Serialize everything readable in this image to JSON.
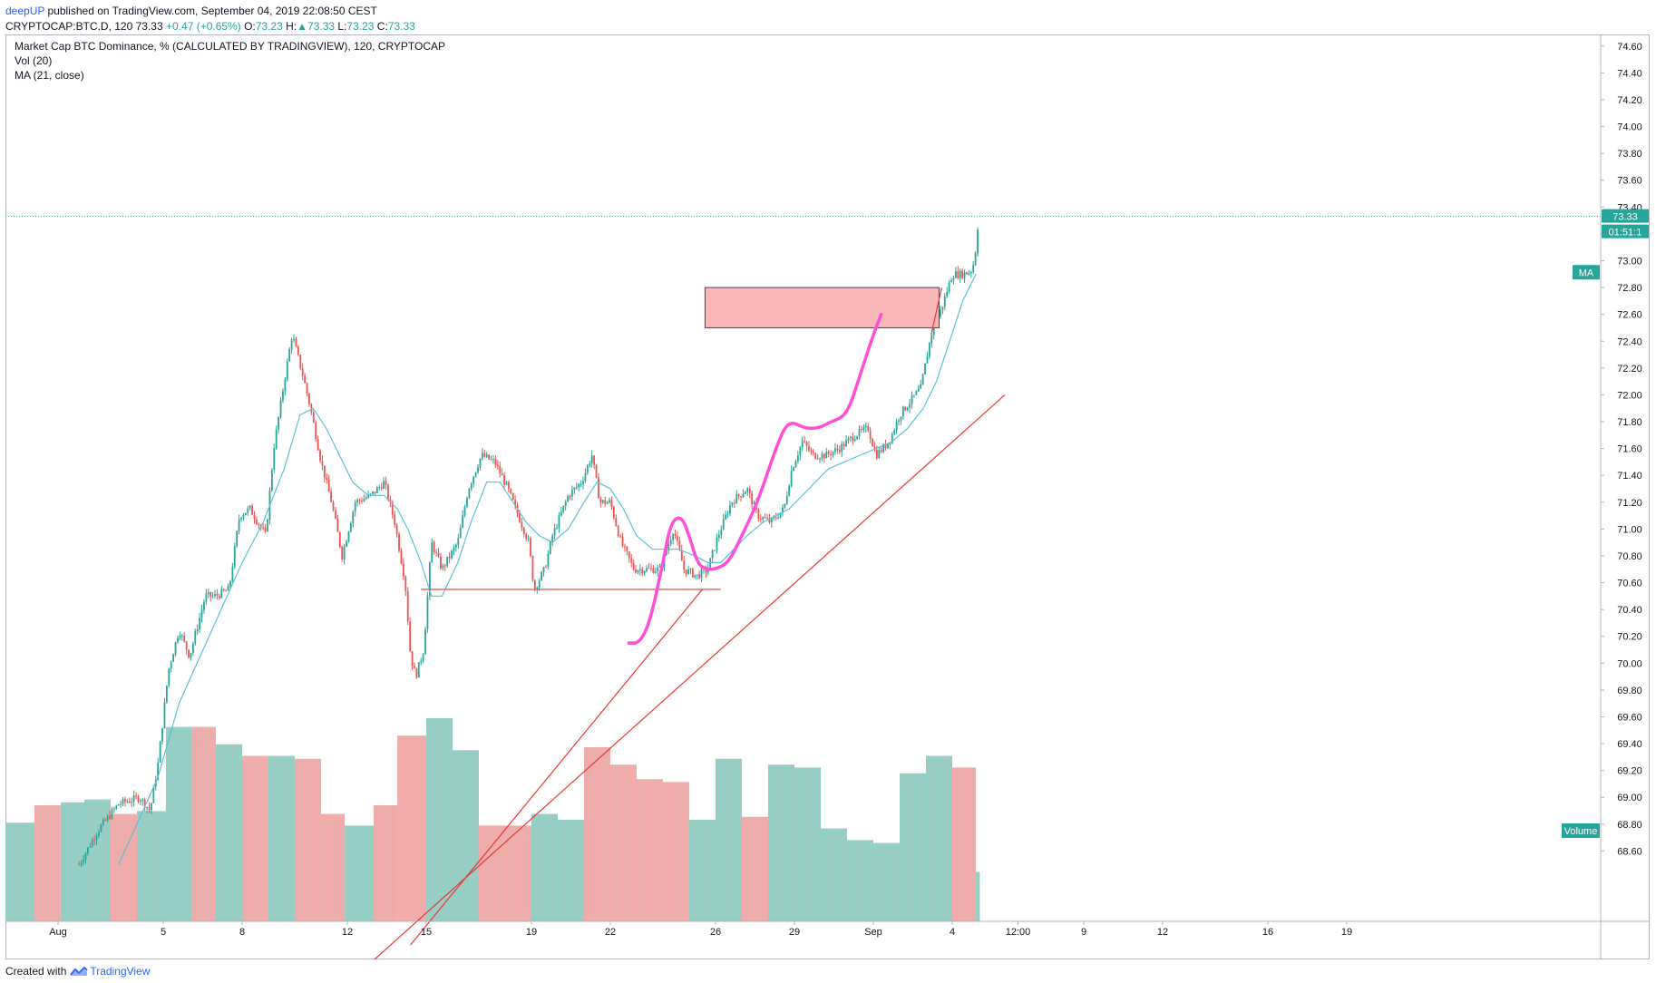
{
  "header": {
    "author": "deepUP",
    "published_text": " published on TradingView.com, September 04, 2019 22:08:50 CEST"
  },
  "symbol_bar": {
    "symbol": "CRYPTOCAP:BTC.D, 120",
    "last": "73.33",
    "change": "+0.47 (+0.65%)",
    "o_label": "O:",
    "o_value": "73.23",
    "h_label": "H:",
    "h_value": "73.33",
    "l_label": "L:",
    "l_value": "73.23",
    "c_label": "C:",
    "c_value": "73.33"
  },
  "legend": {
    "line1": "Market Cap BTC Dominance, % (CALCULATED BY TRADINGVIEW), 120, CRYPTOCAP",
    "line2": "Vol (20)",
    "line3": "MA (21, close)"
  },
  "footer": {
    "created_with": "Created with",
    "brand": "TradingView"
  },
  "price_tags": {
    "last_price": "73.33",
    "countdown": "01:51:1",
    "ma_tag": "MA",
    "volume_tag": "Volume"
  },
  "colors": {
    "up": "#26a69a",
    "down": "#ef5350",
    "vol_up": "#8fd1c7",
    "vol_down": "#f7a9a7",
    "ma": "#5ac2d6",
    "trendline": "#e53935",
    "zone_fill": "#f9b7b7",
    "zone_border": "#3f3f8f",
    "drawing": "#ff4fd8",
    "axis_tag": "#26a69a"
  },
  "chart_data": {
    "type": "candlestick",
    "title": "Market Cap BTC Dominance, % (CALCULATED BY TRADINGVIEW), 120, CRYPTOCAP",
    "ylabel": "",
    "ylim": [
      68.4,
      74.7
    ],
    "y_ticks": [
      68.6,
      68.8,
      69.0,
      69.2,
      69.4,
      69.6,
      69.8,
      70.0,
      70.2,
      70.4,
      70.6,
      70.8,
      71.0,
      71.2,
      71.4,
      71.6,
      71.8,
      72.0,
      72.2,
      72.4,
      72.6,
      72.8,
      73.0,
      73.2,
      73.4,
      73.6,
      73.8,
      74.0,
      74.2,
      74.4,
      74.6
    ],
    "x_ticks": [
      {
        "label": "Aug",
        "day": 1
      },
      {
        "label": "5",
        "day": 5
      },
      {
        "label": "8",
        "day": 8
      },
      {
        "label": "12",
        "day": 12
      },
      {
        "label": "15",
        "day": 15
      },
      {
        "label": "19",
        "day": 19
      },
      {
        "label": "22",
        "day": 22
      },
      {
        "label": "26",
        "day": 26
      },
      {
        "label": "29",
        "day": 29
      },
      {
        "label": "Sep",
        "day": 32
      },
      {
        "label": "4",
        "day": 35
      },
      {
        "label": "12:00",
        "day": 37.5
      },
      {
        "label": "9",
        "day": 40
      },
      {
        "label": "12",
        "day": 43
      },
      {
        "label": "16",
        "day": 47
      },
      {
        "label": "19",
        "day": 50
      }
    ],
    "x_range_days": [
      -1,
      52.5
    ],
    "last_price": 73.33,
    "price_path": [
      [
        1.8,
        68.5
      ],
      [
        2.5,
        68.75
      ],
      [
        3.3,
        68.95
      ],
      [
        4.1,
        69.0
      ],
      [
        4.5,
        68.9
      ],
      [
        4.8,
        69.25
      ],
      [
        5.2,
        69.95
      ],
      [
        5.6,
        70.25
      ],
      [
        6.0,
        70.05
      ],
      [
        6.6,
        70.5
      ],
      [
        7.0,
        70.5
      ],
      [
        7.5,
        70.55
      ],
      [
        7.9,
        71.1
      ],
      [
        8.3,
        71.15
      ],
      [
        8.9,
        70.95
      ],
      [
        9.2,
        71.6
      ],
      [
        9.6,
        72.1
      ],
      [
        9.9,
        72.45
      ],
      [
        10.3,
        72.15
      ],
      [
        10.6,
        71.9
      ],
      [
        11.0,
        71.5
      ],
      [
        11.4,
        71.2
      ],
      [
        11.8,
        70.8
      ],
      [
        12.3,
        71.2
      ],
      [
        12.9,
        71.25
      ],
      [
        13.4,
        71.35
      ],
      [
        13.8,
        71.05
      ],
      [
        14.2,
        70.6
      ],
      [
        14.4,
        70.05
      ],
      [
        14.6,
        69.9
      ],
      [
        14.9,
        70.1
      ],
      [
        15.2,
        70.9
      ],
      [
        15.6,
        70.7
      ],
      [
        16.2,
        70.9
      ],
      [
        16.6,
        71.3
      ],
      [
        17.1,
        71.55
      ],
      [
        17.6,
        71.5
      ],
      [
        18.1,
        71.3
      ],
      [
        18.5,
        71.1
      ],
      [
        18.9,
        70.9
      ],
      [
        19.1,
        70.55
      ],
      [
        19.5,
        70.7
      ],
      [
        19.8,
        70.95
      ],
      [
        20.4,
        71.25
      ],
      [
        20.9,
        71.35
      ],
      [
        21.3,
        71.55
      ],
      [
        21.6,
        71.2
      ],
      [
        22.0,
        71.2
      ],
      [
        22.4,
        70.9
      ],
      [
        22.9,
        70.7
      ],
      [
        23.4,
        70.7
      ],
      [
        23.9,
        70.7
      ],
      [
        24.4,
        71.0
      ],
      [
        24.8,
        70.7
      ],
      [
        25.3,
        70.65
      ],
      [
        25.7,
        70.7
      ],
      [
        26.1,
        70.95
      ],
      [
        26.6,
        71.2
      ],
      [
        27.2,
        71.3
      ],
      [
        27.6,
        71.1
      ],
      [
        28.1,
        71.05
      ],
      [
        28.6,
        71.15
      ],
      [
        28.9,
        71.45
      ],
      [
        29.3,
        71.65
      ],
      [
        29.7,
        71.55
      ],
      [
        30.2,
        71.55
      ],
      [
        30.7,
        71.6
      ],
      [
        31.3,
        71.7
      ],
      [
        31.8,
        71.75
      ],
      [
        32.1,
        71.55
      ],
      [
        32.6,
        71.65
      ],
      [
        33.0,
        71.85
      ],
      [
        33.4,
        71.95
      ],
      [
        33.8,
        72.05
      ],
      [
        34.2,
        72.45
      ],
      [
        34.6,
        72.65
      ],
      [
        35.0,
        72.9
      ],
      [
        35.4,
        72.9
      ],
      [
        35.7,
        72.92
      ],
      [
        35.85,
        73.0
      ],
      [
        36.0,
        73.33
      ]
    ],
    "ma_path": [
      [
        3.3,
        68.5
      ],
      [
        4.0,
        68.8
      ],
      [
        4.8,
        69.15
      ],
      [
        5.6,
        69.7
      ],
      [
        6.4,
        70.05
      ],
      [
        7.2,
        70.4
      ],
      [
        8.0,
        70.75
      ],
      [
        8.8,
        71.05
      ],
      [
        9.6,
        71.45
      ],
      [
        10.2,
        71.85
      ],
      [
        10.7,
        71.9
      ],
      [
        11.2,
        71.75
      ],
      [
        11.7,
        71.55
      ],
      [
        12.2,
        71.35
      ],
      [
        12.8,
        71.25
      ],
      [
        13.4,
        71.25
      ],
      [
        13.9,
        71.15
      ],
      [
        14.3,
        71.0
      ],
      [
        14.8,
        70.75
      ],
      [
        15.2,
        70.5
      ],
      [
        15.6,
        70.5
      ],
      [
        16.2,
        70.75
      ],
      [
        16.7,
        71.05
      ],
      [
        17.3,
        71.35
      ],
      [
        17.8,
        71.35
      ],
      [
        18.3,
        71.2
      ],
      [
        18.8,
        71.05
      ],
      [
        19.3,
        70.95
      ],
      [
        19.8,
        70.9
      ],
      [
        20.4,
        71.0
      ],
      [
        21.0,
        71.2
      ],
      [
        21.5,
        71.35
      ],
      [
        22.0,
        71.3
      ],
      [
        22.5,
        71.15
      ],
      [
        23.0,
        70.95
      ],
      [
        23.6,
        70.85
      ],
      [
        24.1,
        70.85
      ],
      [
        24.6,
        70.85
      ],
      [
        25.2,
        70.8
      ],
      [
        25.7,
        70.75
      ],
      [
        26.2,
        70.75
      ],
      [
        26.7,
        70.85
      ],
      [
        27.2,
        70.95
      ],
      [
        27.8,
        71.05
      ],
      [
        28.3,
        71.1
      ],
      [
        28.8,
        71.15
      ],
      [
        29.3,
        71.25
      ],
      [
        29.8,
        71.35
      ],
      [
        30.3,
        71.45
      ],
      [
        30.9,
        71.5
      ],
      [
        31.5,
        71.55
      ],
      [
        32.1,
        71.6
      ],
      [
        32.7,
        71.65
      ],
      [
        33.3,
        71.75
      ],
      [
        33.9,
        71.9
      ],
      [
        34.4,
        72.1
      ],
      [
        34.9,
        72.4
      ],
      [
        35.4,
        72.7
      ],
      [
        35.9,
        72.9
      ]
    ],
    "volume_bars": [
      {
        "start": -1.0,
        "end": 0.1,
        "height": 0.34,
        "dir": "up"
      },
      {
        "start": 0.1,
        "end": 1.1,
        "height": 0.4,
        "dir": "down"
      },
      {
        "start": 1.1,
        "end": 2.0,
        "height": 0.41,
        "dir": "up"
      },
      {
        "start": 2.0,
        "end": 3.0,
        "height": 0.42,
        "dir": "up"
      },
      {
        "start": 3.0,
        "end": 4.0,
        "height": 0.37,
        "dir": "down"
      },
      {
        "start": 4.0,
        "end": 5.1,
        "height": 0.38,
        "dir": "up"
      },
      {
        "start": 5.1,
        "end": 6.1,
        "height": 0.67,
        "dir": "up"
      },
      {
        "start": 6.1,
        "end": 7.0,
        "height": 0.67,
        "dir": "down"
      },
      {
        "start": 7.0,
        "end": 8.0,
        "height": 0.61,
        "dir": "up"
      },
      {
        "start": 8.0,
        "end": 9.0,
        "height": 0.57,
        "dir": "down"
      },
      {
        "start": 9.0,
        "end": 10.0,
        "height": 0.57,
        "dir": "up"
      },
      {
        "start": 10.0,
        "end": 11.0,
        "height": 0.56,
        "dir": "down"
      },
      {
        "start": 11.0,
        "end": 11.9,
        "height": 0.37,
        "dir": "down"
      },
      {
        "start": 11.9,
        "end": 13.0,
        "height": 0.33,
        "dir": "up"
      },
      {
        "start": 13.0,
        "end": 13.9,
        "height": 0.4,
        "dir": "down"
      },
      {
        "start": 13.9,
        "end": 15.0,
        "height": 0.64,
        "dir": "down"
      },
      {
        "start": 15.0,
        "end": 16.0,
        "height": 0.7,
        "dir": "up"
      },
      {
        "start": 16.0,
        "end": 17.0,
        "height": 0.59,
        "dir": "up"
      },
      {
        "start": 17.0,
        "end": 18.0,
        "height": 0.33,
        "dir": "down"
      },
      {
        "start": 18.0,
        "end": 19.0,
        "height": 0.33,
        "dir": "down"
      },
      {
        "start": 19.0,
        "end": 20.0,
        "height": 0.37,
        "dir": "up"
      },
      {
        "start": 20.0,
        "end": 21.0,
        "height": 0.35,
        "dir": "up"
      },
      {
        "start": 21.0,
        "end": 22.0,
        "height": 0.6,
        "dir": "down"
      },
      {
        "start": 22.0,
        "end": 23.0,
        "height": 0.54,
        "dir": "down"
      },
      {
        "start": 23.0,
        "end": 24.0,
        "height": 0.49,
        "dir": "down"
      },
      {
        "start": 24.0,
        "end": 25.0,
        "height": 0.48,
        "dir": "down"
      },
      {
        "start": 25.0,
        "end": 26.0,
        "height": 0.35,
        "dir": "up"
      },
      {
        "start": 26.0,
        "end": 27.0,
        "height": 0.56,
        "dir": "up"
      },
      {
        "start": 27.0,
        "end": 28.0,
        "height": 0.36,
        "dir": "down"
      },
      {
        "start": 28.0,
        "end": 29.0,
        "height": 0.54,
        "dir": "up"
      },
      {
        "start": 29.0,
        "end": 30.0,
        "height": 0.53,
        "dir": "up"
      },
      {
        "start": 30.0,
        "end": 31.0,
        "height": 0.32,
        "dir": "up"
      },
      {
        "start": 31.0,
        "end": 32.0,
        "height": 0.28,
        "dir": "up"
      },
      {
        "start": 32.0,
        "end": 33.0,
        "height": 0.27,
        "dir": "up"
      },
      {
        "start": 33.0,
        "end": 34.0,
        "height": 0.51,
        "dir": "up"
      },
      {
        "start": 34.0,
        "end": 35.0,
        "height": 0.57,
        "dir": "up"
      },
      {
        "start": 35.0,
        "end": 35.9,
        "height": 0.53,
        "dir": "down"
      },
      {
        "start": 35.9,
        "end": 36.05,
        "height": 0.17,
        "dir": "up"
      }
    ],
    "drawings": {
      "support_line": {
        "x1": 14.8,
        "x2": 26.2,
        "y": 70.55
      },
      "trendline_a": {
        "x1": 10.8,
        "y1": 67.4,
        "x2": 37.0,
        "y2": 72.0
      },
      "trendline_b": {
        "x1": 14.4,
        "y1": 67.9,
        "x2": 25.5,
        "y2": 70.55
      },
      "breakout_zone": {
        "x1": 25.6,
        "x2": 34.5,
        "y1": 72.5,
        "y2": 72.8
      },
      "breakout_line": {
        "x1": 34.2,
        "y1": 72.45,
        "x2": 34.6,
        "y2": 72.8
      },
      "projection_path": [
        [
          22.7,
          70.15
        ],
        [
          23.1,
          70.15
        ],
        [
          23.5,
          70.3
        ],
        [
          24.0,
          70.75
        ],
        [
          24.3,
          71.05
        ],
        [
          24.7,
          71.1
        ],
        [
          25.0,
          70.95
        ],
        [
          25.3,
          70.75
        ],
        [
          25.6,
          70.7
        ],
        [
          26.0,
          70.7
        ],
        [
          26.5,
          70.75
        ],
        [
          27.0,
          70.95
        ],
        [
          27.6,
          71.2
        ],
        [
          28.2,
          71.55
        ],
        [
          28.6,
          71.75
        ],
        [
          28.9,
          71.8
        ],
        [
          29.4,
          71.75
        ],
        [
          29.9,
          71.75
        ],
        [
          30.4,
          71.8
        ],
        [
          31.0,
          71.85
        ],
        [
          31.5,
          72.15
        ],
        [
          32.0,
          72.45
        ],
        [
          32.3,
          72.6
        ]
      ]
    }
  }
}
